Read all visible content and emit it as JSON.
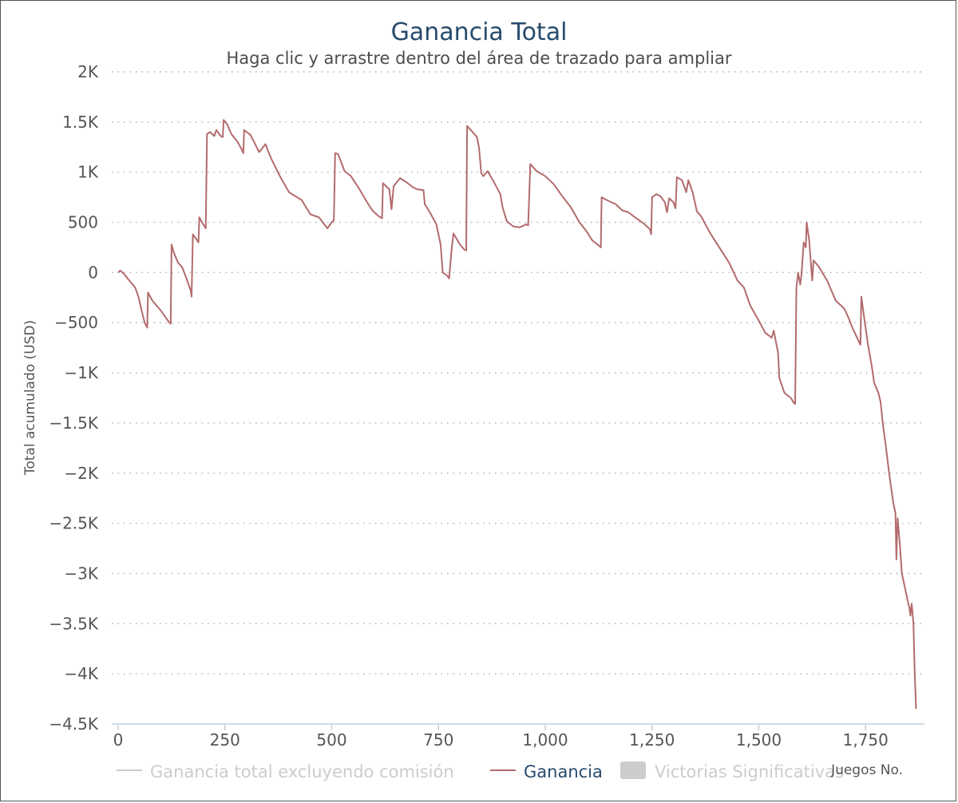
{
  "chart_data": {
    "type": "line",
    "title": "Ganancia Total",
    "subtitle": "Haga clic y arrastre dentro del área de trazado para ampliar",
    "xlabel": "Juegos No.",
    "ylabel": "Total acumulado (USD)",
    "xlim": [
      0,
      1890
    ],
    "ylim": [
      -4500,
      2000
    ],
    "x_ticks": [
      0,
      250,
      500,
      750,
      1000,
      1250,
      1500,
      1750
    ],
    "x_tick_labels": [
      "0",
      "250",
      "500",
      "750",
      "1,000",
      "1,250",
      "1,500",
      "1,750"
    ],
    "y_ticks": [
      2000,
      1500,
      1000,
      500,
      0,
      -500,
      -1000,
      -1500,
      -2000,
      -2500,
      -3000,
      -3500,
      -4000,
      -4500
    ],
    "y_tick_labels": [
      "2K",
      "1.5K",
      "1K",
      "500",
      "0",
      "−500",
      "−1K",
      "−1.5K",
      "−2K",
      "−2.5K",
      "−3K",
      "−3.5K",
      "−4K",
      "−4.5K"
    ],
    "grid": true,
    "legend_position": "bottom-center",
    "legend": [
      {
        "label": "Ganancia total excluyendo comisión",
        "kind": "line",
        "active": false,
        "color": "#cccccc"
      },
      {
        "label": "Ganancia",
        "kind": "line",
        "active": true,
        "color": "#b36b6d"
      },
      {
        "label": "Victorias Significativas",
        "kind": "box",
        "active": false,
        "color": "#cccccc"
      }
    ],
    "series": [
      {
        "name": "Ganancia",
        "color": "#b36b6d",
        "points": [
          [
            0,
            0
          ],
          [
            5,
            20
          ],
          [
            15,
            -20
          ],
          [
            22,
            -60
          ],
          [
            30,
            -100
          ],
          [
            40,
            -150
          ],
          [
            48,
            -250
          ],
          [
            55,
            -380
          ],
          [
            62,
            -500
          ],
          [
            68,
            -550
          ],
          [
            70,
            -200
          ],
          [
            80,
            -280
          ],
          [
            100,
            -380
          ],
          [
            110,
            -440
          ],
          [
            120,
            -500
          ],
          [
            123,
            -510
          ],
          [
            125,
            280
          ],
          [
            130,
            200
          ],
          [
            140,
            100
          ],
          [
            150,
            50
          ],
          [
            160,
            -60
          ],
          [
            170,
            -180
          ],
          [
            172,
            -240
          ],
          [
            175,
            380
          ],
          [
            185,
            320
          ],
          [
            188,
            300
          ],
          [
            190,
            550
          ],
          [
            195,
            510
          ],
          [
            205,
            440
          ],
          [
            208,
            1380
          ],
          [
            215,
            1400
          ],
          [
            225,
            1360
          ],
          [
            230,
            1420
          ],
          [
            240,
            1360
          ],
          [
            245,
            1350
          ],
          [
            247,
            1520
          ],
          [
            255,
            1480
          ],
          [
            265,
            1380
          ],
          [
            280,
            1300
          ],
          [
            290,
            1220
          ],
          [
            293,
            1190
          ],
          [
            295,
            1420
          ],
          [
            310,
            1370
          ],
          [
            330,
            1200
          ],
          [
            345,
            1280
          ],
          [
            350,
            1220
          ],
          [
            360,
            1120
          ],
          [
            380,
            950
          ],
          [
            400,
            800
          ],
          [
            430,
            720
          ],
          [
            450,
            580
          ],
          [
            470,
            550
          ],
          [
            490,
            440
          ],
          [
            500,
            500
          ],
          [
            505,
            520
          ],
          [
            508,
            1190
          ],
          [
            515,
            1180
          ],
          [
            530,
            1010
          ],
          [
            545,
            960
          ],
          [
            565,
            830
          ],
          [
            580,
            720
          ],
          [
            595,
            620
          ],
          [
            610,
            560
          ],
          [
            618,
            540
          ],
          [
            620,
            890
          ],
          [
            635,
            830
          ],
          [
            640,
            630
          ],
          [
            645,
            860
          ],
          [
            660,
            940
          ],
          [
            675,
            900
          ],
          [
            690,
            850
          ],
          [
            700,
            830
          ],
          [
            715,
            820
          ],
          [
            718,
            680
          ],
          [
            730,
            600
          ],
          [
            745,
            480
          ],
          [
            755,
            280
          ],
          [
            760,
            0
          ],
          [
            770,
            -30
          ],
          [
            775,
            -60
          ],
          [
            780,
            200
          ],
          [
            785,
            390
          ],
          [
            800,
            280
          ],
          [
            810,
            230
          ],
          [
            815,
            220
          ],
          [
            817,
            1460
          ],
          [
            830,
            1400
          ],
          [
            840,
            1350
          ],
          [
            845,
            1240
          ],
          [
            850,
            990
          ],
          [
            855,
            960
          ],
          [
            865,
            1010
          ],
          [
            880,
            900
          ],
          [
            895,
            780
          ],
          [
            900,
            650
          ],
          [
            910,
            510
          ],
          [
            925,
            460
          ],
          [
            940,
            450
          ],
          [
            955,
            480
          ],
          [
            960,
            470
          ],
          [
            965,
            1080
          ],
          [
            980,
            1010
          ],
          [
            1000,
            960
          ],
          [
            1020,
            880
          ],
          [
            1040,
            760
          ],
          [
            1060,
            650
          ],
          [
            1080,
            500
          ],
          [
            1095,
            420
          ],
          [
            1110,
            320
          ],
          [
            1125,
            270
          ],
          [
            1130,
            250
          ],
          [
            1132,
            750
          ],
          [
            1145,
            720
          ],
          [
            1165,
            680
          ],
          [
            1180,
            620
          ],
          [
            1195,
            600
          ],
          [
            1210,
            550
          ],
          [
            1230,
            490
          ],
          [
            1245,
            430
          ],
          [
            1248,
            380
          ],
          [
            1250,
            750
          ],
          [
            1260,
            780
          ],
          [
            1270,
            760
          ],
          [
            1280,
            700
          ],
          [
            1285,
            600
          ],
          [
            1290,
            740
          ],
          [
            1300,
            700
          ],
          [
            1305,
            640
          ],
          [
            1308,
            950
          ],
          [
            1320,
            920
          ],
          [
            1330,
            800
          ],
          [
            1335,
            920
          ],
          [
            1345,
            800
          ],
          [
            1355,
            610
          ],
          [
            1365,
            560
          ],
          [
            1385,
            400
          ],
          [
            1400,
            300
          ],
          [
            1415,
            200
          ],
          [
            1430,
            100
          ],
          [
            1450,
            -80
          ],
          [
            1465,
            -150
          ],
          [
            1480,
            -330
          ],
          [
            1500,
            -480
          ],
          [
            1515,
            -600
          ],
          [
            1530,
            -650
          ],
          [
            1535,
            -580
          ],
          [
            1545,
            -800
          ],
          [
            1548,
            -1050
          ],
          [
            1560,
            -1200
          ],
          [
            1575,
            -1250
          ],
          [
            1582,
            -1300
          ],
          [
            1585,
            -1310
          ],
          [
            1588,
            -150
          ],
          [
            1592,
            0
          ],
          [
            1597,
            -120
          ],
          [
            1600,
            -20
          ],
          [
            1605,
            300
          ],
          [
            1610,
            250
          ],
          [
            1612,
            500
          ],
          [
            1618,
            320
          ],
          [
            1625,
            -80
          ],
          [
            1628,
            120
          ],
          [
            1640,
            60
          ],
          [
            1660,
            -80
          ],
          [
            1680,
            -280
          ],
          [
            1700,
            -360
          ],
          [
            1710,
            -450
          ],
          [
            1720,
            -560
          ],
          [
            1730,
            -650
          ],
          [
            1738,
            -720
          ],
          [
            1740,
            -240
          ],
          [
            1745,
            -400
          ],
          [
            1755,
            -700
          ],
          [
            1765,
            -950
          ],
          [
            1770,
            -1100
          ],
          [
            1780,
            -1200
          ],
          [
            1785,
            -1290
          ],
          [
            1790,
            -1500
          ],
          [
            1798,
            -1750
          ],
          [
            1805,
            -2000
          ],
          [
            1815,
            -2300
          ],
          [
            1820,
            -2400
          ],
          [
            1822,
            -2860
          ],
          [
            1825,
            -2450
          ],
          [
            1830,
            -2700
          ],
          [
            1835,
            -3000
          ],
          [
            1840,
            -3100
          ],
          [
            1845,
            -3200
          ],
          [
            1850,
            -3300
          ],
          [
            1853,
            -3350
          ],
          [
            1855,
            -3420
          ],
          [
            1858,
            -3300
          ],
          [
            1862,
            -3500
          ],
          [
            1865,
            -4000
          ],
          [
            1867,
            -4200
          ],
          [
            1868,
            -4350
          ]
        ]
      }
    ]
  }
}
